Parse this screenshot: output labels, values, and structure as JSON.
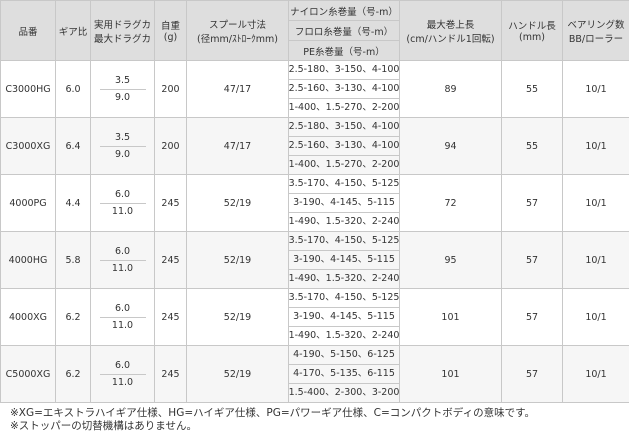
{
  "table": {
    "headers": {
      "model": "品番",
      "gear_ratio": "ギア比",
      "drag": [
        "実用ドラグカ",
        "最大ドラグカ"
      ],
      "weight": [
        "自重",
        "(g)"
      ],
      "spool": [
        "スプール寸法",
        "(径mm/ｽﾄﾛｰｸmm)"
      ],
      "line_capacity": [
        "ナイロン糸巻量（号-m）",
        "フロロ糸巻量（号-m）",
        "PE糸巻量（号-m）"
      ],
      "max_retrieve": [
        "最大巻上長",
        "(cm/ハンドル1回転)"
      ],
      "handle_length": [
        "ハンドル長",
        "(mm)"
      ],
      "bearings": [
        "ベアリング数",
        "BB/ローラー"
      ]
    },
    "rows": [
      {
        "model": "C3000HG",
        "gear": "6.0",
        "drag": "3.5",
        "max_drag": "9.0",
        "weight": "200",
        "spool": "47/17",
        "nylon": "2.5-180、3-150、4-100",
        "fluoro": "2.5-160、3-130、4-100",
        "pe": "1-400、1.5-270、2-200",
        "retrieve": "89",
        "handle": "55",
        "bearings": "10/1"
      },
      {
        "model": "C3000XG",
        "gear": "6.4",
        "drag": "3.5",
        "max_drag": "9.0",
        "weight": "200",
        "spool": "47/17",
        "nylon": "2.5-180、3-150、4-100",
        "fluoro": "2.5-160、3-130、4-100",
        "pe": "1-400、1.5-270、2-200",
        "retrieve": "94",
        "handle": "55",
        "bearings": "10/1"
      },
      {
        "model": "4000PG",
        "gear": "4.4",
        "drag": "6.0",
        "max_drag": "11.0",
        "weight": "245",
        "spool": "52/19",
        "nylon": "3.5-170、4-150、5-125",
        "fluoro": "3-190、4-145、5-115",
        "pe": "1-490、1.5-320、2-240",
        "retrieve": "72",
        "handle": "57",
        "bearings": "10/1"
      },
      {
        "model": "4000HG",
        "gear": "5.8",
        "drag": "6.0",
        "max_drag": "11.0",
        "weight": "245",
        "spool": "52/19",
        "nylon": "3.5-170、4-150、5-125",
        "fluoro": "3-190、4-145、5-115",
        "pe": "1-490、1.5-320、2-240",
        "retrieve": "95",
        "handle": "57",
        "bearings": "10/1"
      },
      {
        "model": "4000XG",
        "gear": "6.2",
        "drag": "6.0",
        "max_drag": "11.0",
        "weight": "245",
        "spool": "52/19",
        "nylon": "3.5-170、4-150、5-125",
        "fluoro": "3-190、4-145、5-115",
        "pe": "1-490、1.5-320、2-240",
        "retrieve": "101",
        "handle": "57",
        "bearings": "10/1"
      },
      {
        "model": "C5000XG",
        "gear": "6.2",
        "drag": "6.0",
        "max_drag": "11.0",
        "weight": "245",
        "spool": "52/19",
        "nylon": "4-190、5-150、6-125",
        "fluoro": "4-170、5-135、6-115",
        "pe": "1.5-400、2-300、3-200",
        "retrieve": "101",
        "handle": "57",
        "bearings": "10/1"
      }
    ]
  },
  "notes": [
    "※XG=エキストラハイギア仕様、HG=ハイギア仕様、PG=パワーギア仕様、C=コンパクトボディの意味です。",
    "※ストッパーの切替機構はありません。"
  ],
  "colors": {
    "header_bg": "#dedede",
    "border": "#c8c8c8",
    "stripe": "#f6f6f6",
    "text": "#333333"
  }
}
